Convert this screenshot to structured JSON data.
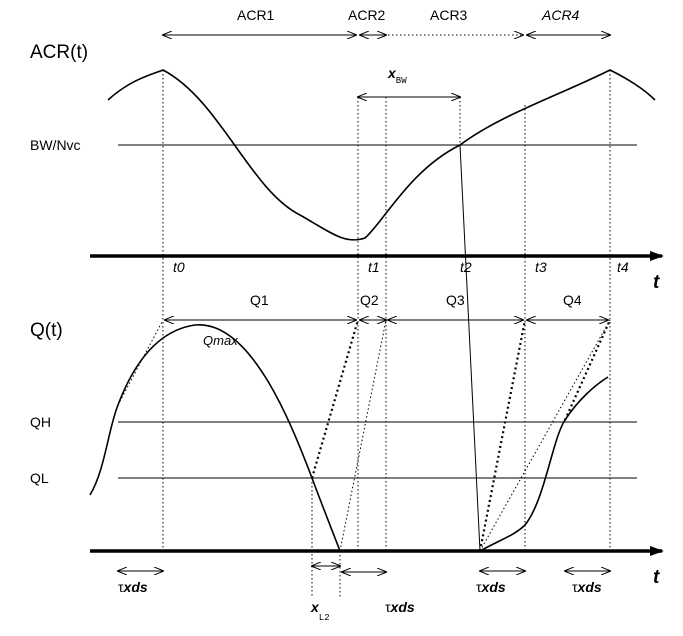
{
  "top_panel": {
    "y_label": "ACR(t)",
    "intervals": [
      "ACR1",
      "ACR2",
      "ACR3",
      "ACR4"
    ],
    "level": "BW/Nvc",
    "delay": {
      "symbol": "x",
      "subscript": "BW"
    },
    "time_marks": [
      "t0",
      "t1",
      "t2",
      "t3",
      "t4"
    ],
    "axis_label": "t"
  },
  "bottom_panel": {
    "y_label": "Q(t)",
    "intervals": [
      "Q1",
      "Q2",
      "Q3",
      "Q4"
    ],
    "peak": "Qmax",
    "levels": [
      "QH",
      "QL"
    ],
    "delays": [
      {
        "symbol": "τ",
        "text": "xds"
      },
      {
        "symbol": "τ",
        "text": "xds"
      },
      {
        "symbol": "τ",
        "text": "xds"
      },
      {
        "symbol": "τ",
        "text": "xds"
      }
    ],
    "offset": {
      "symbol": "x",
      "subscript": "L2"
    },
    "axis_label": "t"
  }
}
